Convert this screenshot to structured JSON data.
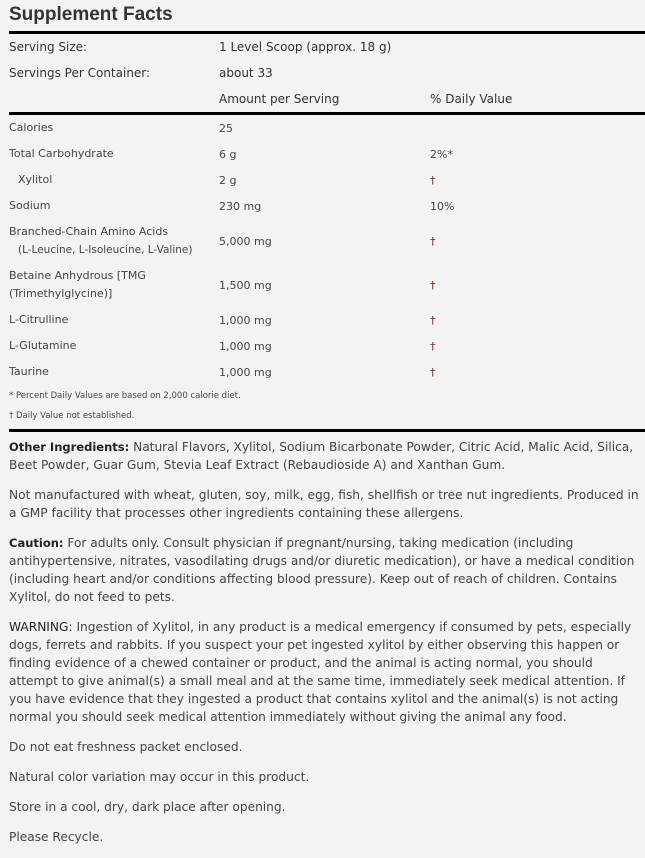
{
  "title": "Supplement Facts",
  "serving": {
    "size_label": "Serving Size:",
    "size_value": "1 Level Scoop (approx. 18 g)",
    "per_container_label": "Servings Per Container:",
    "per_container_value": "about 33"
  },
  "header": {
    "amount": "Amount per Serving",
    "dv": "% Daily Value"
  },
  "nutrients": [
    {
      "name": "Calories",
      "amount": "25",
      "dv": ""
    },
    {
      "name": "Total Carbohydrate",
      "amount": "6 g",
      "dv": "2%*"
    },
    {
      "name": "Xylitol",
      "amount": "2 g",
      "dv": "†"
    },
    {
      "name": "Sodium",
      "amount": "230 mg",
      "dv": "10%"
    },
    {
      "name": "Branched-Chain Amino Acids",
      "sub": "(L-Leucine, L-Isoleucine, L-Valine)",
      "amount": "5,000 mg",
      "dv": "†"
    },
    {
      "name": "Betaine Anhydrous [TMG",
      "sub": "(Trimethylglycine)]",
      "amount": "1,500 mg",
      "dv": "†"
    },
    {
      "name": "L-Citrulline",
      "amount": "1,000 mg",
      "dv": "†"
    },
    {
      "name": "L-Glutamine",
      "amount": "1,000 mg",
      "dv": "†"
    },
    {
      "name": "Taurine",
      "amount": "1,000 mg",
      "dv": "†"
    }
  ],
  "footnotes": [
    "* Percent Daily Values are based on 2,000 calorie diet.",
    "† Daily Value not established."
  ],
  "paragraphs": {
    "other_label": "Other Ingredients:",
    "other_text": " Natural Flavors, Xylitol, Sodium Bicarbonate Powder, Citric Acid, Malic Acid, Silica, Beet Powder, Guar Gum, Stevia Leaf Extract (Rebaudioside A) and Xanthan Gum.",
    "allergen": "Not manufactured with wheat, gluten, soy, milk, egg, fish, shellfish or tree nut ingredients. Produced in a GMP facility that processes other ingredients containing these allergens.",
    "caution_label": "Caution:",
    "caution_text": " For adults only. Consult physician if pregnant/nursing, taking medication (including antihypertensive, nitrates, vasodilating drugs and/or diuretic medication), or have a medical condition (including heart and/or conditions affecting blood pressure). Keep out of reach of children. Contains Xylitol, do not feed to pets.",
    "warning_label": "WARNING:",
    "warning_text": " Ingestion of Xylitol, in any product is a medical emergency if consumed by pets, especially dogs, ferrets and rabbits. If you suspect your pet ingested xylitol by either observing this happen or finding evidence of a chewed container or product, and the animal is acting normal, you should attempt to give animal(s) a small meal and at the same time, immediately seek medical attention. If you have evidence that they ingested a product that contains xylitol and the animal(s) is not acting normal you should  seek medical attention immediately without giving the animal any food.",
    "freshness": "Do not eat freshness packet enclosed.",
    "color": "Natural color variation may occur in this product.",
    "store": "Store in a cool, dry, dark place after opening.",
    "recycle": "Please Recycle."
  },
  "colors": {
    "background": "#f3f3f3",
    "dagger": "#8b1a1a",
    "rule": "#000000"
  }
}
